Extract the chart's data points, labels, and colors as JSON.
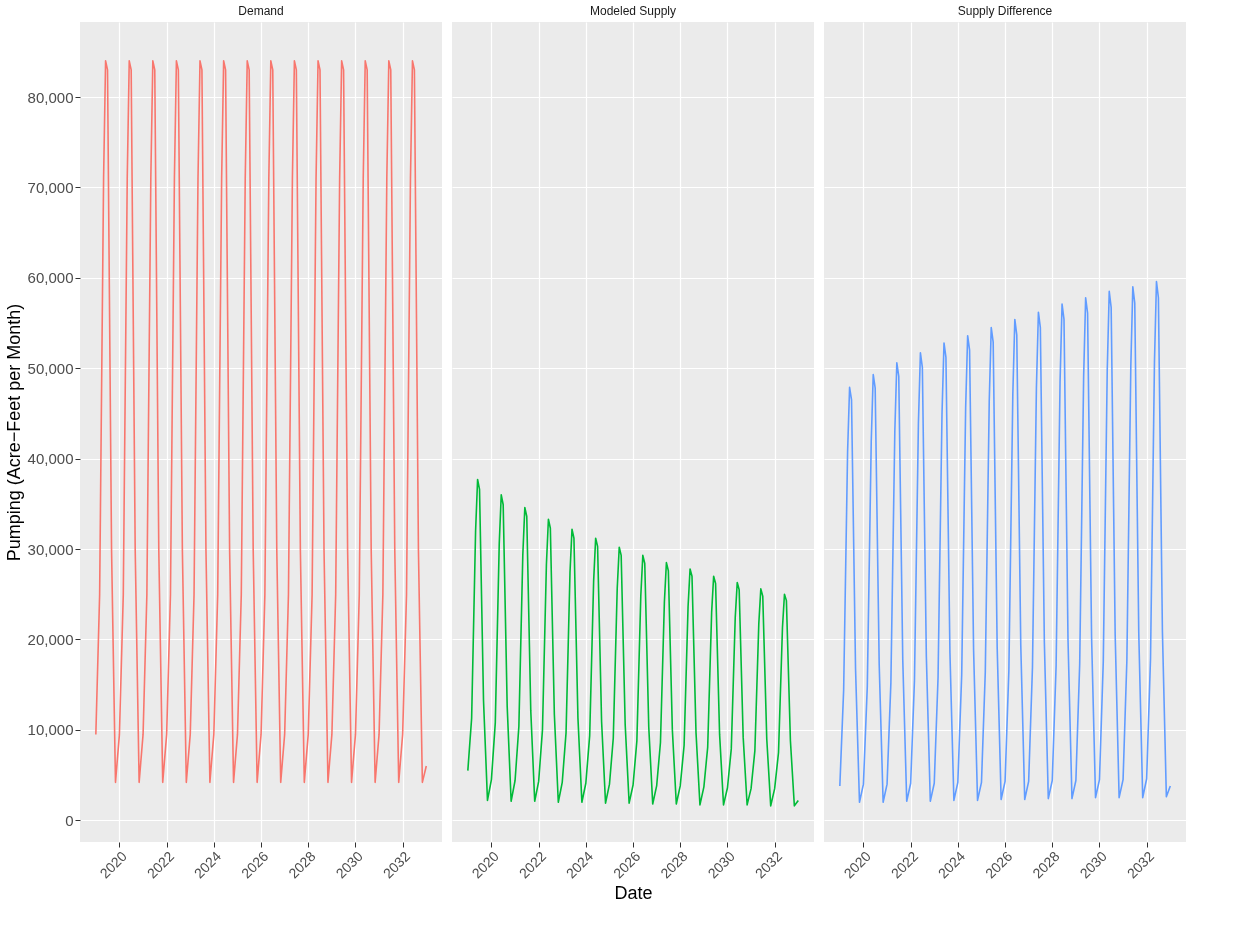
{
  "chart_data": [
    {
      "type": "line",
      "title": "Demand",
      "ylabel": "Pumping (Acre−Feet per Month)",
      "color": "#f8766d",
      "x": [
        "2019-01",
        "2019-03",
        "2019-05",
        "2019-06",
        "2019-07",
        "2019-09",
        "2019-11",
        "2020-01",
        "2020-03",
        "2020-05",
        "2020-06",
        "2020-07",
        "2020-09",
        "2020-11",
        "2021-01",
        "2021-03",
        "2021-05",
        "2021-06",
        "2021-07",
        "2021-09",
        "2021-11",
        "2022-01",
        "2022-03",
        "2022-05",
        "2022-06",
        "2022-07",
        "2022-09",
        "2022-11",
        "2023-01",
        "2023-03",
        "2023-05",
        "2023-06",
        "2023-07",
        "2023-09",
        "2023-11",
        "2024-01",
        "2024-03",
        "2024-05",
        "2024-06",
        "2024-07",
        "2024-09",
        "2024-11",
        "2025-01",
        "2025-03",
        "2025-05",
        "2025-06",
        "2025-07",
        "2025-09",
        "2025-11",
        "2026-01",
        "2026-03",
        "2026-05",
        "2026-06",
        "2026-07",
        "2026-09",
        "2026-11",
        "2027-01",
        "2027-03",
        "2027-05",
        "2027-06",
        "2027-07",
        "2027-09",
        "2027-11",
        "2028-01",
        "2028-03",
        "2028-05",
        "2028-06",
        "2028-07",
        "2028-09",
        "2028-11",
        "2029-01",
        "2029-03",
        "2029-05",
        "2029-06",
        "2029-07",
        "2029-09",
        "2029-11",
        "2030-01",
        "2030-03",
        "2030-05",
        "2030-06",
        "2030-07",
        "2030-09",
        "2030-11",
        "2031-01",
        "2031-03",
        "2031-05",
        "2031-06",
        "2031-07",
        "2031-09",
        "2031-11",
        "2032-01",
        "2032-03",
        "2032-05",
        "2032-06",
        "2032-07",
        "2032-09",
        "2032-11",
        "2033-01"
      ],
      "values": [
        9500,
        25000,
        71000,
        84000,
        83000,
        30000,
        4200,
        9500,
        25000,
        71000,
        84000,
        83000,
        30000,
        4200,
        9500,
        25000,
        71000,
        84000,
        83000,
        30000,
        4200,
        9500,
        25000,
        71000,
        84000,
        83000,
        30000,
        4200,
        9500,
        25000,
        71000,
        84000,
        83000,
        30000,
        4200,
        9500,
        25000,
        71000,
        84000,
        83000,
        30000,
        4200,
        9500,
        25000,
        71000,
        84000,
        83000,
        30000,
        4200,
        9500,
        25000,
        71000,
        84000,
        83000,
        30000,
        4200,
        9500,
        25000,
        71000,
        84000,
        83000,
        30000,
        4200,
        9500,
        25000,
        71000,
        84000,
        83000,
        30000,
        4200,
        9500,
        25000,
        71000,
        84000,
        83000,
        30000,
        4200,
        9500,
        25000,
        71000,
        84000,
        83000,
        30000,
        4200,
        9500,
        25000,
        71000,
        84000,
        83000,
        30000,
        4200,
        9500,
        25000,
        71000,
        84000,
        83000,
        30000,
        4200,
        6000
      ],
      "xlim": [
        "2018-05",
        "2033-09"
      ],
      "xticks": [
        "2020",
        "2022",
        "2024",
        "2026",
        "2028",
        "2030",
        "2032"
      ],
      "ylim": [
        -2400,
        88300
      ],
      "yticks": [
        {
          "value": 0,
          "label": "0"
        },
        {
          "value": 10000,
          "label": "10,000"
        },
        {
          "value": 20000,
          "label": "20,000"
        },
        {
          "value": 30000,
          "label": "30,000"
        },
        {
          "value": 40000,
          "label": "40,000"
        },
        {
          "value": 50000,
          "label": "50,000"
        },
        {
          "value": 60000,
          "label": "60,000"
        },
        {
          "value": 70000,
          "label": "70,000"
        },
        {
          "value": 80000,
          "label": "80,000"
        }
      ],
      "grid": true,
      "marker": "none",
      "line_style": "solid"
    },
    {
      "type": "line",
      "title": "Modeled Supply",
      "xlabel": "Date",
      "color": "#00ba38",
      "x": [
        "2019-01",
        "2019-03",
        "2019-05",
        "2019-06",
        "2019-07",
        "2019-09",
        "2019-11",
        "2020-01",
        "2020-03",
        "2020-05",
        "2020-06",
        "2020-07",
        "2020-09",
        "2020-11",
        "2021-01",
        "2021-03",
        "2021-05",
        "2021-06",
        "2021-07",
        "2021-09",
        "2021-11",
        "2022-01",
        "2022-03",
        "2022-05",
        "2022-06",
        "2022-07",
        "2022-09",
        "2022-11",
        "2023-01",
        "2023-03",
        "2023-05",
        "2023-06",
        "2023-07",
        "2023-09",
        "2023-11",
        "2024-01",
        "2024-03",
        "2024-05",
        "2024-06",
        "2024-07",
        "2024-09",
        "2024-11",
        "2025-01",
        "2025-03",
        "2025-05",
        "2025-06",
        "2025-07",
        "2025-09",
        "2025-11",
        "2026-01",
        "2026-03",
        "2026-05",
        "2026-06",
        "2026-07",
        "2026-09",
        "2026-11",
        "2027-01",
        "2027-03",
        "2027-05",
        "2027-06",
        "2027-07",
        "2027-09",
        "2027-11",
        "2028-01",
        "2028-03",
        "2028-05",
        "2028-06",
        "2028-07",
        "2028-09",
        "2028-11",
        "2029-01",
        "2029-03",
        "2029-05",
        "2029-06",
        "2029-07",
        "2029-09",
        "2029-11",
        "2030-01",
        "2030-03",
        "2030-05",
        "2030-06",
        "2030-07",
        "2030-09",
        "2030-11",
        "2031-01",
        "2031-03",
        "2031-05",
        "2031-06",
        "2031-07",
        "2031-09",
        "2031-11",
        "2032-01",
        "2032-03",
        "2032-05",
        "2032-06",
        "2032-07",
        "2032-09",
        "2032-11",
        "2033-01"
      ],
      "values": [
        5500,
        11300,
        32000,
        37700,
        36600,
        13200,
        2200,
        4500,
        10800,
        30600,
        36000,
        34900,
        12600,
        2100,
        4400,
        10400,
        29400,
        34600,
        33600,
        12100,
        2100,
        4300,
        10000,
        28300,
        33300,
        32300,
        11700,
        2000,
        4200,
        9700,
        27400,
        32200,
        31200,
        11300,
        2000,
        4100,
        9400,
        26500,
        31200,
        30300,
        10900,
        1900,
        4000,
        9100,
        25700,
        30200,
        29300,
        10600,
        1900,
        3900,
        8800,
        24900,
        29300,
        28400,
        10300,
        1800,
        3800,
        8600,
        24200,
        28500,
        27600,
        10000,
        1800,
        3800,
        8300,
        23600,
        27800,
        27000,
        9700,
        1700,
        3700,
        8100,
        23000,
        27000,
        26200,
        9500,
        1700,
        3600,
        7900,
        22400,
        26300,
        25500,
        9200,
        1700,
        3500,
        7700,
        21800,
        25600,
        24800,
        9000,
        1600,
        3500,
        7500,
        21300,
        25000,
        24300,
        8800,
        1600,
        2200
      ],
      "xlim": [
        "2018-05",
        "2033-09"
      ],
      "xticks": [
        "2020",
        "2022",
        "2024",
        "2026",
        "2028",
        "2030",
        "2032"
      ],
      "ylim": [
        -2400,
        88300
      ],
      "yticks": [
        {
          "value": 0,
          "label": null
        },
        {
          "value": 10000,
          "label": null
        },
        {
          "value": 20000,
          "label": null
        },
        {
          "value": 30000,
          "label": null
        },
        {
          "value": 40000,
          "label": null
        },
        {
          "value": 50000,
          "label": null
        },
        {
          "value": 60000,
          "label": null
        },
        {
          "value": 70000,
          "label": null
        },
        {
          "value": 80000,
          "label": null
        }
      ],
      "tick_labels": "x",
      "grid": true,
      "marker": "none",
      "line_style": "solid"
    },
    {
      "type": "line",
      "title": "Supply Difference",
      "color": "#619cff",
      "x": [
        "2019-01",
        "2019-03",
        "2019-05",
        "2019-06",
        "2019-07",
        "2019-09",
        "2019-11",
        "2020-01",
        "2020-03",
        "2020-05",
        "2020-06",
        "2020-07",
        "2020-09",
        "2020-11",
        "2021-01",
        "2021-03",
        "2021-05",
        "2021-06",
        "2021-07",
        "2021-09",
        "2021-11",
        "2022-01",
        "2022-03",
        "2022-05",
        "2022-06",
        "2022-07",
        "2022-09",
        "2022-11",
        "2023-01",
        "2023-03",
        "2023-05",
        "2023-06",
        "2023-07",
        "2023-09",
        "2023-11",
        "2024-01",
        "2024-03",
        "2024-05",
        "2024-06",
        "2024-07",
        "2024-09",
        "2024-11",
        "2025-01",
        "2025-03",
        "2025-05",
        "2025-06",
        "2025-07",
        "2025-09",
        "2025-11",
        "2026-01",
        "2026-03",
        "2026-05",
        "2026-06",
        "2026-07",
        "2026-09",
        "2026-11",
        "2027-01",
        "2027-03",
        "2027-05",
        "2027-06",
        "2027-07",
        "2027-09",
        "2027-11",
        "2028-01",
        "2028-03",
        "2028-05",
        "2028-06",
        "2028-07",
        "2028-09",
        "2028-11",
        "2029-01",
        "2029-03",
        "2029-05",
        "2029-06",
        "2029-07",
        "2029-09",
        "2029-11",
        "2030-01",
        "2030-03",
        "2030-05",
        "2030-06",
        "2030-07",
        "2030-09",
        "2030-11",
        "2031-01",
        "2031-03",
        "2031-05",
        "2031-06",
        "2031-07",
        "2031-09",
        "2031-11",
        "2032-01",
        "2032-03",
        "2032-05",
        "2032-06",
        "2032-07",
        "2032-09",
        "2032-11",
        "2033-01"
      ],
      "values": [
        3800,
        14400,
        40700,
        47900,
        46500,
        16800,
        2000,
        4000,
        14800,
        41900,
        49300,
        47800,
        17300,
        2000,
        4000,
        15200,
        43000,
        50600,
        49100,
        17700,
        2100,
        4100,
        15500,
        43900,
        51700,
        50100,
        18100,
        2100,
        4100,
        15800,
        44900,
        52800,
        51200,
        18500,
        2200,
        4200,
        16100,
        45600,
        53600,
        52000,
        18800,
        2200,
        4200,
        16400,
        46300,
        54500,
        52900,
        19100,
        2300,
        4300,
        16600,
        47100,
        55400,
        53700,
        19400,
        2300,
        4300,
        16900,
        47800,
        56200,
        54500,
        19700,
        2400,
        4400,
        17100,
        48500,
        57100,
        55400,
        20000,
        2400,
        4400,
        17300,
        49100,
        57800,
        56100,
        20200,
        2500,
        4500,
        17600,
        49700,
        58500,
        56700,
        20500,
        2500,
        4500,
        17700,
        50200,
        59000,
        57200,
        20700,
        2500,
        4600,
        17900,
        50700,
        59600,
        57800,
        20900,
        2600,
        3800
      ],
      "xlim": [
        "2018-05",
        "2033-09"
      ],
      "xticks": [
        "2020",
        "2022",
        "2024",
        "2026",
        "2028",
        "2030",
        "2032"
      ],
      "ylim": [
        -2400,
        88300
      ],
      "yticks": [
        {
          "value": 0,
          "label": null
        },
        {
          "value": 10000,
          "label": null
        },
        {
          "value": 20000,
          "label": null
        },
        {
          "value": 30000,
          "label": null
        },
        {
          "value": 40000,
          "label": null
        },
        {
          "value": 50000,
          "label": null
        },
        {
          "value": 60000,
          "label": null
        },
        {
          "value": 70000,
          "label": null
        },
        {
          "value": 80000,
          "label": null
        }
      ],
      "tick_labels": "x",
      "grid": true,
      "marker": "none",
      "line_style": "solid"
    }
  ]
}
